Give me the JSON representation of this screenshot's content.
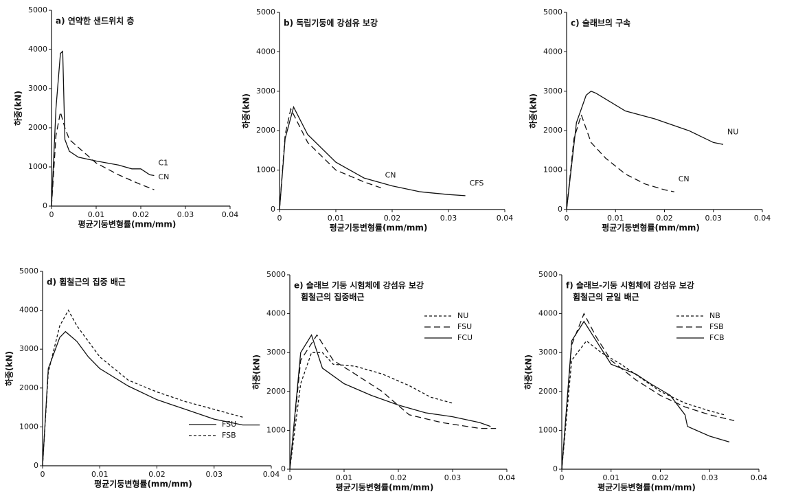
{
  "chart_data": [
    {
      "type": "line",
      "title": "a) 연약한 샌드위치 층",
      "xlabel": "평균기둥변형률(mm/mm)",
      "ylabel": "하중(kN)",
      "xlim": [
        0,
        0.04
      ],
      "xticks": [
        0,
        0.01,
        0.02,
        0.03,
        0.04
      ],
      "ylim": [
        0,
        5000
      ],
      "yticks": [
        0,
        1000,
        2000,
        3000,
        4000,
        5000
      ],
      "series": [
        {
          "name": "C1",
          "color": "#111111",
          "dash": "solid",
          "x": [
            0,
            0.001,
            0.002,
            0.0025,
            0.003,
            0.004,
            0.006,
            0.01,
            0.015,
            0.018,
            0.02,
            0.022,
            0.023
          ],
          "values": [
            0,
            2500,
            3900,
            3950,
            1700,
            1400,
            1250,
            1150,
            1050,
            950,
            950,
            800,
            780
          ]
        },
        {
          "name": "CN",
          "color": "#111111",
          "dash": "dashed",
          "x": [
            0,
            0.001,
            0.002,
            0.003,
            0.004,
            0.006,
            0.01,
            0.015,
            0.02,
            0.023
          ],
          "values": [
            0,
            1800,
            2400,
            2000,
            1700,
            1500,
            1100,
            800,
            550,
            420
          ]
        }
      ]
    },
    {
      "type": "line",
      "title": "b) 독립기둥에 강섬유 보강",
      "xlabel": "평균기둥변형률(mm/mm)",
      "ylabel": "하중(kN)",
      "xlim": [
        0,
        0.04
      ],
      "xticks": [
        0,
        0.01,
        0.02,
        0.03,
        0.04
      ],
      "ylim": [
        0,
        5000
      ],
      "yticks": [
        0,
        1000,
        2000,
        3000,
        4000,
        5000
      ],
      "series": [
        {
          "name": "CFS",
          "color": "#111111",
          "dash": "solid",
          "x": [
            0,
            0.001,
            0.0025,
            0.005,
            0.01,
            0.015,
            0.02,
            0.025,
            0.03,
            0.033
          ],
          "values": [
            0,
            1800,
            2600,
            1900,
            1200,
            800,
            600,
            450,
            380,
            350
          ]
        },
        {
          "name": "CN",
          "color": "#111111",
          "dash": "dashed",
          "x": [
            0,
            0.001,
            0.002,
            0.005,
            0.01,
            0.015,
            0.018
          ],
          "values": [
            0,
            1900,
            2550,
            1700,
            1000,
            700,
            550
          ]
        }
      ]
    },
    {
      "type": "line",
      "title": "c) 슬래브의 구속",
      "xlabel": "평균기둥변형률(mm/mm)",
      "ylabel": "하중(kN)",
      "xlim": [
        0,
        0.04
      ],
      "xticks": [
        0,
        0.01,
        0.02,
        0.03,
        0.04
      ],
      "ylim": [
        0,
        5000
      ],
      "yticks": [
        0,
        1000,
        2000,
        3000,
        4000,
        5000
      ],
      "series": [
        {
          "name": "NU",
          "color": "#111111",
          "dash": "solid",
          "x": [
            0,
            0.002,
            0.004,
            0.005,
            0.006,
            0.008,
            0.012,
            0.018,
            0.025,
            0.03,
            0.032
          ],
          "values": [
            0,
            2200,
            2900,
            3000,
            2950,
            2800,
            2500,
            2300,
            2000,
            1700,
            1650
          ]
        },
        {
          "name": "CN",
          "color": "#111111",
          "dash": "dashed",
          "x": [
            0,
            0.0015,
            0.003,
            0.005,
            0.008,
            0.012,
            0.016,
            0.02,
            0.022
          ],
          "values": [
            0,
            1800,
            2400,
            1700,
            1300,
            900,
            650,
            500,
            450
          ]
        }
      ]
    },
    {
      "type": "line",
      "title": "d) 휨철근의 집중 배근",
      "xlabel": "평균기둥변형률(mm/mm)",
      "ylabel": "하중(kN)",
      "legend": "lower right",
      "xlim": [
        0,
        0.04
      ],
      "xticks": [
        0,
        0.01,
        0.02,
        0.03,
        0.04
      ],
      "ylim": [
        0,
        5000
      ],
      "yticks": [
        0,
        1000,
        2000,
        3000,
        4000,
        5000
      ],
      "series": [
        {
          "name": "FSU",
          "color": "#111111",
          "dash": "solid",
          "x": [
            0,
            0.001,
            0.003,
            0.004,
            0.006,
            0.008,
            0.01,
            0.015,
            0.02,
            0.025,
            0.03,
            0.035,
            0.038
          ],
          "values": [
            0,
            2500,
            3300,
            3450,
            3200,
            2800,
            2500,
            2050,
            1700,
            1450,
            1200,
            1050,
            1050
          ]
        },
        {
          "name": "FSB",
          "color": "#111111",
          "dash": "dotted",
          "x": [
            0,
            0.001,
            0.003,
            0.0045,
            0.006,
            0.01,
            0.015,
            0.02,
            0.025,
            0.03,
            0.035
          ],
          "values": [
            0,
            2400,
            3600,
            4000,
            3600,
            2800,
            2200,
            1900,
            1650,
            1450,
            1250
          ]
        }
      ]
    },
    {
      "type": "line",
      "title": "e) 슬래브 기둥 시험체에 강섬유 보강",
      "subtitle": "휨철근의 집중배근",
      "xlabel": "평균기둥변형률(mm/mm)",
      "ylabel": "하중(kN)",
      "legend": "upper right",
      "xlim": [
        0,
        0.04
      ],
      "xticks": [
        0,
        0.01,
        0.02,
        0.03,
        0.04
      ],
      "ylim": [
        0,
        5000
      ],
      "yticks": [
        0,
        1000,
        2000,
        3000,
        4000,
        5000
      ],
      "series": [
        {
          "name": "NU",
          "color": "#111111",
          "dash": "dotted",
          "x": [
            0,
            0.002,
            0.004,
            0.006,
            0.008,
            0.012,
            0.017,
            0.022,
            0.026,
            0.03
          ],
          "values": [
            0,
            2200,
            3000,
            3000,
            2700,
            2650,
            2450,
            2150,
            1850,
            1700
          ]
        },
        {
          "name": "FSU",
          "color": "#111111",
          "dash": "dashed",
          "x": [
            0,
            0.002,
            0.005,
            0.008,
            0.012,
            0.017,
            0.022,
            0.028,
            0.035,
            0.038
          ],
          "values": [
            0,
            2800,
            3450,
            2800,
            2450,
            2000,
            1400,
            1200,
            1050,
            1050
          ]
        },
        {
          "name": "FCU",
          "color": "#111111",
          "dash": "solid",
          "x": [
            0,
            0.002,
            0.004,
            0.006,
            0.01,
            0.015,
            0.02,
            0.025,
            0.03,
            0.035,
            0.037
          ],
          "values": [
            0,
            3000,
            3450,
            2600,
            2200,
            1900,
            1650,
            1450,
            1350,
            1200,
            1100
          ]
        }
      ]
    },
    {
      "type": "line",
      "title": "f) 슬래브-기둥 시험체에 강섬유 보강",
      "subtitle": "휨철근의 균일 배근",
      "xlabel": "평균기둥변형률(mm/mm)",
      "ylabel": "하중(kN)",
      "legend": "upper right",
      "xlim": [
        0,
        0.04
      ],
      "xticks": [
        0,
        0.01,
        0.02,
        0.03,
        0.04
      ],
      "ylim": [
        0,
        5000
      ],
      "yticks": [
        0,
        1000,
        2000,
        3000,
        4000,
        5000
      ],
      "series": [
        {
          "name": "NB",
          "color": "#111111",
          "dash": "dotted",
          "x": [
            0,
            0.002,
            0.005,
            0.008,
            0.012,
            0.016,
            0.02,
            0.025,
            0.03,
            0.033
          ],
          "values": [
            0,
            2800,
            3300,
            3000,
            2700,
            2350,
            2000,
            1700,
            1500,
            1400
          ]
        },
        {
          "name": "FSB",
          "color": "#111111",
          "dash": "dashed",
          "x": [
            0,
            0.002,
            0.0045,
            0.007,
            0.01,
            0.015,
            0.02,
            0.025,
            0.03,
            0.035
          ],
          "values": [
            0,
            3200,
            4000,
            3400,
            2800,
            2300,
            1900,
            1600,
            1400,
            1250
          ]
        },
        {
          "name": "FCB",
          "color": "#111111",
          "dash": "solid",
          "x": [
            0,
            0.002,
            0.0045,
            0.007,
            0.01,
            0.015,
            0.018,
            0.022,
            0.025,
            0.0255,
            0.03,
            0.034
          ],
          "values": [
            0,
            3300,
            3800,
            3300,
            2700,
            2450,
            2200,
            1900,
            1400,
            1100,
            850,
            700
          ]
        }
      ]
    }
  ]
}
